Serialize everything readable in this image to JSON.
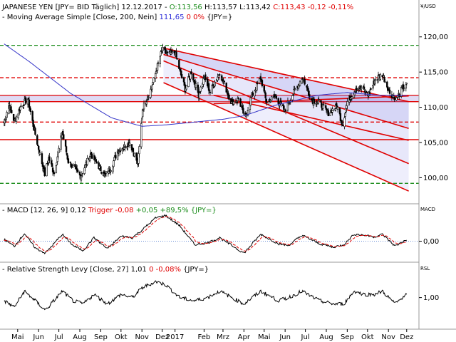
{
  "chart_data": {
    "type": "candlestick",
    "header": {
      "symbol": "JAPANESE YEN [JPY= BID Täglich] 12.12.2017",
      "open": "O:113,56",
      "high": "H:113,57",
      "low": "L:113,42",
      "close": "C:113,43",
      "change": "-0,12",
      "change_pct": "-0,11%",
      "ma_label": "Moving Average Simple [Close, 200, Nein]",
      "ma_value": "111,65",
      "ma_change": "0 0%",
      "ma_unit": "{JPY=}"
    },
    "unit_label": "¥/USD",
    "price": {
      "ylim": [
        96.5,
        122.2
      ],
      "yticks": [
        "100,00",
        "105,00",
        "110,00",
        "115,00",
        "120,00"
      ],
      "ytick_values": [
        100,
        105,
        110,
        115,
        120
      ],
      "anchors": [
        [
          "2016-04-25",
          107.8
        ],
        [
          "2016-05-02",
          110.5
        ],
        [
          "2016-05-10",
          108.0
        ],
        [
          "2016-05-20",
          110.2
        ],
        [
          "2016-05-30",
          111.2
        ],
        [
          "2016-06-08",
          107.0
        ],
        [
          "2016-06-24",
          100.5
        ],
        [
          "2016-06-30",
          102.8
        ],
        [
          "2016-07-08",
          100.6
        ],
        [
          "2016-07-20",
          106.5
        ],
        [
          "2016-07-29",
          102.3
        ],
        [
          "2016-08-16",
          100.2
        ],
        [
          "2016-08-31",
          103.4
        ],
        [
          "2016-09-21",
          100.3
        ],
        [
          "2016-09-30",
          101.4
        ],
        [
          "2016-10-10",
          103.8
        ],
        [
          "2016-10-28",
          105.0
        ],
        [
          "2016-11-09",
          102.0
        ],
        [
          "2016-11-16",
          109.8
        ],
        [
          "2016-11-28",
          112.5
        ],
        [
          "2016-12-15",
          118.2
        ],
        [
          "2016-12-22",
          117.5
        ],
        [
          "2017-01-03",
          117.8
        ],
        [
          "2017-01-10",
          115.2
        ],
        [
          "2017-01-18",
          112.6
        ],
        [
          "2017-01-27",
          115.0
        ],
        [
          "2017-02-07",
          111.8
        ],
        [
          "2017-02-15",
          114.3
        ],
        [
          "2017-02-24",
          112.2
        ],
        [
          "2017-03-10",
          115.0
        ],
        [
          "2017-03-20",
          112.5
        ],
        [
          "2017-03-28",
          110.6
        ],
        [
          "2017-04-07",
          111.2
        ],
        [
          "2017-04-17",
          108.4
        ],
        [
          "2017-04-26",
          111.5
        ],
        [
          "2017-05-10",
          114.2
        ],
        [
          "2017-05-18",
          110.8
        ],
        [
          "2017-06-01",
          111.5
        ],
        [
          "2017-06-14",
          109.5
        ],
        [
          "2017-06-23",
          111.3
        ],
        [
          "2017-07-11",
          114.3
        ],
        [
          "2017-07-24",
          111.0
        ],
        [
          "2017-08-04",
          110.7
        ],
        [
          "2017-08-18",
          109.2
        ],
        [
          "2017-08-31",
          110.2
        ],
        [
          "2017-09-08",
          107.5
        ],
        [
          "2017-09-15",
          110.8
        ],
        [
          "2017-09-28",
          112.7
        ],
        [
          "2017-10-06",
          112.8
        ],
        [
          "2017-10-16",
          111.8
        ],
        [
          "2017-10-27",
          114.0
        ],
        [
          "2017-11-06",
          114.7
        ],
        [
          "2017-11-17",
          112.1
        ],
        [
          "2017-11-27",
          111.2
        ],
        [
          "2017-12-05",
          112.6
        ],
        [
          "2017-12-12",
          113.43
        ]
      ],
      "ma_anchors": [
        [
          "2016-04-25",
          119.0
        ],
        [
          "2016-06-01",
          116.5
        ],
        [
          "2016-08-01",
          112.0
        ],
        [
          "2016-10-01",
          108.5
        ],
        [
          "2016-11-15",
          107.3
        ],
        [
          "2016-12-20",
          107.5
        ],
        [
          "2017-02-01",
          107.9
        ],
        [
          "2017-03-15",
          108.3
        ],
        [
          "2017-04-15",
          108.8
        ],
        [
          "2017-06-01",
          110.3
        ],
        [
          "2017-08-01",
          111.7
        ],
        [
          "2017-09-15",
          112.1
        ],
        [
          "2017-11-01",
          111.7
        ],
        [
          "2017-12-12",
          111.65
        ]
      ]
    },
    "horizontal_lines": [
      {
        "value": 118.8,
        "style": "dashed",
        "color": "#1a8c1a"
      },
      {
        "value": 99.2,
        "style": "dashed",
        "color": "#1a8c1a"
      },
      {
        "value": 105.4,
        "style": "solid",
        "color": "#e00000"
      },
      {
        "value": 114.2,
        "style": "dashed",
        "color": "#e00000"
      },
      {
        "value": 107.9,
        "style": "dashed",
        "color": "#e00000"
      }
    ],
    "horizontal_band": {
      "from": 110.8,
      "to": 111.7,
      "color": "#e00000"
    },
    "trend_lines": [
      {
        "from": [
          "2016-12-17",
          118.4
        ],
        "to": [
          "2017-12-15",
          110.8
        ]
      },
      {
        "from": [
          "2016-12-17",
          117.5
        ],
        "to": [
          "2017-12-15",
          107.0
        ]
      },
      {
        "from": [
          "2016-12-17",
          116.6
        ],
        "to": [
          "2017-12-15",
          102.0
        ]
      },
      {
        "from": [
          "2016-12-17",
          113.5
        ],
        "to": [
          "2017-12-15",
          98.1
        ]
      },
      {
        "from": [
          "2017-03-01",
          111.7
        ],
        "to": [
          "2017-12-15",
          105.3
        ]
      },
      {
        "from": [
          "2017-03-01",
          110.5
        ],
        "to": [
          "2017-12-15",
          111.6
        ]
      }
    ],
    "macd": {
      "label": "MACD [12, 26, 9] 0,12",
      "trigger_label": "Trigger -0,08",
      "extra": "+0,05 +89,5% {JPY=}",
      "unit_label": "MACD",
      "tick": "0,00",
      "ylim": [
        -2.2,
        3.2
      ],
      "anchors": [
        [
          "2016-04-25",
          0.2
        ],
        [
          "2016-05-10",
          -0.6
        ],
        [
          "2016-05-25",
          0.9
        ],
        [
          "2016-06-10",
          -0.8
        ],
        [
          "2016-06-25",
          -1.4
        ],
        [
          "2016-07-20",
          0.8
        ],
        [
          "2016-08-05",
          -0.5
        ],
        [
          "2016-08-20",
          -1.1
        ],
        [
          "2016-09-05",
          0.4
        ],
        [
          "2016-09-25",
          -0.9
        ],
        [
          "2016-10-15",
          0.6
        ],
        [
          "2016-11-01",
          0.4
        ],
        [
          "2016-11-15",
          1.3
        ],
        [
          "2016-12-05",
          2.7
        ],
        [
          "2016-12-20",
          3.0
        ],
        [
          "2017-01-10",
          1.8
        ],
        [
          "2017-02-01",
          -0.4
        ],
        [
          "2017-02-20",
          -0.2
        ],
        [
          "2017-03-10",
          0.4
        ],
        [
          "2017-04-15",
          -1.4
        ],
        [
          "2017-05-10",
          0.8
        ],
        [
          "2017-06-05",
          -0.3
        ],
        [
          "2017-06-20",
          -0.5
        ],
        [
          "2017-07-10",
          0.7
        ],
        [
          "2017-08-05",
          -0.3
        ],
        [
          "2017-08-25",
          -0.7
        ],
        [
          "2017-09-10",
          -0.4
        ],
        [
          "2017-09-25",
          0.8
        ],
        [
          "2017-10-10",
          0.7
        ],
        [
          "2017-10-25",
          0.5
        ],
        [
          "2017-11-06",
          0.8
        ],
        [
          "2017-11-25",
          -0.6
        ],
        [
          "2017-12-05",
          -0.1
        ],
        [
          "2017-12-12",
          0.12
        ]
      ]
    },
    "rsl": {
      "label": "Relative Strength Levy [Close, 27] 1,01",
      "change": "0 -0,08%",
      "unit": "{JPY=}",
      "unit_label": "RSL",
      "tick": "1,00",
      "ylim": [
        0.91,
        1.075
      ],
      "anchors": [
        [
          "2016-04-25",
          0.99
        ],
        [
          "2016-05-10",
          0.97
        ],
        [
          "2016-05-25",
          1.02
        ],
        [
          "2016-06-10",
          0.99
        ],
        [
          "2016-06-25",
          0.96
        ],
        [
          "2016-07-20",
          1.02
        ],
        [
          "2016-08-05",
          0.99
        ],
        [
          "2016-08-20",
          0.98
        ],
        [
          "2016-09-05",
          1.01
        ],
        [
          "2016-09-25",
          0.98
        ],
        [
          "2016-10-15",
          1.01
        ],
        [
          "2016-11-01",
          1.0
        ],
        [
          "2016-11-15",
          1.03
        ],
        [
          "2016-12-05",
          1.05
        ],
        [
          "2016-12-20",
          1.04
        ],
        [
          "2017-01-10",
          1.0
        ],
        [
          "2017-02-01",
          0.99
        ],
        [
          "2017-02-20",
          1.0
        ],
        [
          "2017-03-10",
          1.02
        ],
        [
          "2017-04-15",
          0.98
        ],
        [
          "2017-05-10",
          1.02
        ],
        [
          "2017-06-05",
          0.99
        ],
        [
          "2017-06-20",
          1.0
        ],
        [
          "2017-07-10",
          1.02
        ],
        [
          "2017-08-05",
          0.99
        ],
        [
          "2017-08-25",
          0.98
        ],
        [
          "2017-09-10",
          0.98
        ],
        [
          "2017-09-25",
          1.02
        ],
        [
          "2017-10-10",
          1.01
        ],
        [
          "2017-10-25",
          1.01
        ],
        [
          "2017-11-06",
          1.02
        ],
        [
          "2017-11-25",
          0.98
        ],
        [
          "2017-12-05",
          1.0
        ],
        [
          "2017-12-12",
          1.01
        ]
      ]
    },
    "x_labels": [
      {
        "date": "2016-05-15",
        "text": "Mai"
      },
      {
        "date": "2016-06-15",
        "text": "Jun"
      },
      {
        "date": "2016-07-15",
        "text": "Jul"
      },
      {
        "date": "2016-08-15",
        "text": "Aug"
      },
      {
        "date": "2016-09-15",
        "text": "Sep"
      },
      {
        "date": "2016-10-15",
        "text": "Okt"
      },
      {
        "date": "2016-11-15",
        "text": "Nov"
      },
      {
        "date": "2016-12-15",
        "text": "Dez"
      },
      {
        "date": "2017-01-03",
        "text": "2017"
      },
      {
        "date": "2017-02-15",
        "text": "Feb"
      },
      {
        "date": "2017-03-15",
        "text": "Mrz"
      },
      {
        "date": "2017-04-15",
        "text": "Apr"
      },
      {
        "date": "2017-05-15",
        "text": "Mai"
      },
      {
        "date": "2017-06-15",
        "text": "Jun"
      },
      {
        "date": "2017-07-15",
        "text": "Jul"
      },
      {
        "date": "2017-08-15",
        "text": "Aug"
      },
      {
        "date": "2017-09-15",
        "text": "Sep"
      },
      {
        "date": "2017-10-15",
        "text": "Okt"
      },
      {
        "date": "2017-11-15",
        "text": "Nov"
      },
      {
        "date": "2017-12-12",
        "text": "Dez"
      }
    ],
    "x_range": [
      "2016-04-22",
      "2017-12-27"
    ],
    "grid": false
  }
}
